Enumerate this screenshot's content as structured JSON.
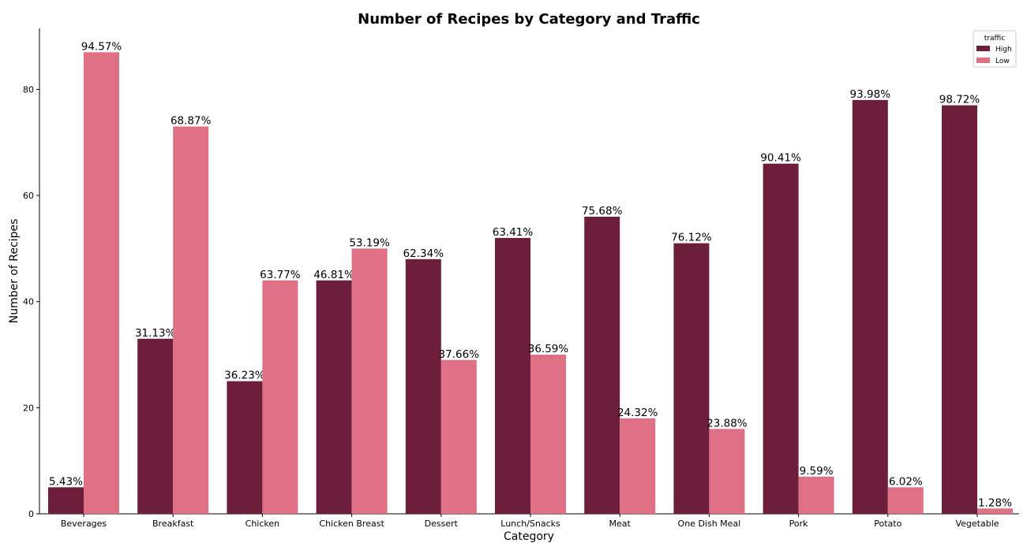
{
  "chart_data": {
    "type": "bar",
    "title": "Number of Recipes by Category and Traffic",
    "xlabel": "Category",
    "ylabel": "Number of Recipes",
    "categories": [
      "Beverages",
      "Breakfast",
      "Chicken",
      "Chicken Breast",
      "Dessert",
      "Lunch/Snacks",
      "Meat",
      "One Dish Meal",
      "Pork",
      "Potato",
      "Vegetable"
    ],
    "series": [
      {
        "name": "High",
        "color": "#6d1e3a",
        "values": [
          5,
          33,
          25,
          44,
          48,
          52,
          56,
          51,
          66,
          78,
          77
        ],
        "labels": [
          "5.43%",
          "31.13%",
          "36.23%",
          "46.81%",
          "62.34%",
          "63.41%",
          "75.68%",
          "76.12%",
          "90.41%",
          "93.98%",
          "98.72%"
        ]
      },
      {
        "name": "Low",
        "color": "#e07085",
        "values": [
          87,
          73,
          44,
          50,
          29,
          30,
          18,
          16,
          7,
          5,
          1
        ],
        "labels": [
          "94.57%",
          "68.87%",
          "63.77%",
          "53.19%",
          "37.66%",
          "36.59%",
          "24.32%",
          "23.88%",
          "9.59%",
          "6.02%",
          "1.28%"
        ]
      }
    ],
    "ylim": [
      0,
      91.5
    ],
    "yticks": [
      0,
      20,
      40,
      60,
      80
    ],
    "legend": {
      "title": "traffic",
      "position": "top-right"
    },
    "grid": false
  }
}
